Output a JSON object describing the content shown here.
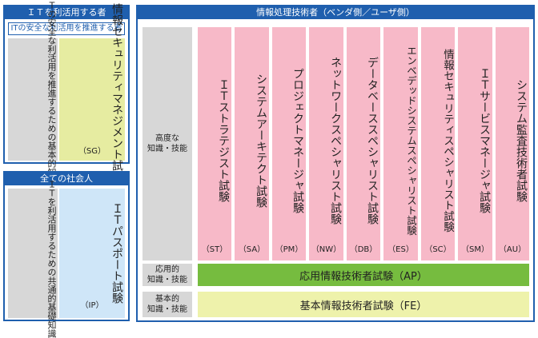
{
  "left_top": {
    "header": "ＩＴを利活用する者",
    "subheader": "ITの安全な利活用を推進する者",
    "description": "ＩＴの安全な利活用を推進するための基本的知識・技能",
    "exam_title": "情報セキュリティマネジメント試験",
    "exam_abbr": "（SG）"
  },
  "left_bottom": {
    "header": "全ての社会人",
    "description": "ＩＴを利活用するための共通的基礎知識",
    "exam_title": "ＩＴパスポート試験",
    "exam_abbr": "（IP）"
  },
  "right": {
    "header": "情報処理技術者（ベンダ側／ユーザ側）",
    "levels": {
      "advanced": "高度な\n知識・技能",
      "applied": "応用的\n知識・技能",
      "basic": "基本的\n知識・技能"
    },
    "exams": [
      {
        "title": "ＩＴストラテジスト試験",
        "abbr": "（ST）"
      },
      {
        "title": "システムアーキテクト試験",
        "abbr": "（SA）"
      },
      {
        "title": "プロジェクトマネージャ試験",
        "abbr": "（PM）"
      },
      {
        "title": "ネットワークスペシャリスト試験",
        "abbr": "（NW）"
      },
      {
        "title": "データベーススペシャリスト試験",
        "abbr": "（DB）"
      },
      {
        "title": "エンベデッドシステムスペシャリスト試験",
        "abbr": "（ES）"
      },
      {
        "title": "情報セキュリティスペシャリスト試験",
        "abbr": "（SC）"
      },
      {
        "title": "ＩＴサービスマネージャ試験",
        "abbr": "（SM）"
      },
      {
        "title": "システム監査技術者試験",
        "abbr": "（AU）"
      }
    ],
    "applied_exam": "応用情報技術者試験（AP）",
    "basic_exam": "基本情報技術者試験（FE）"
  },
  "colors": {
    "border_blue": "#1f5fae",
    "gray": "#d7d7d7",
    "pink": "#f7b9c8",
    "yellow_green": "#e6eca1",
    "light_blue": "#cfe6f8",
    "green": "#76bc3f",
    "light_yellow": "#eef2ab"
  }
}
